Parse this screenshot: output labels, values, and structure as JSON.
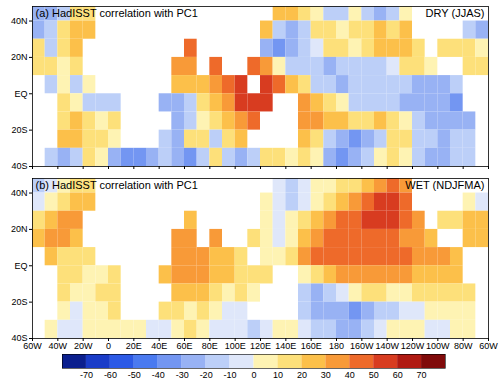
{
  "chart_data": [
    {
      "type": "heatmap",
      "title": "(a) HadISST correlation with PC1",
      "annotation": "DRY (JJAS)",
      "xlim": [
        -60,
        300
      ],
      "ylim": [
        -40,
        48
      ],
      "xticks": [
        {
          "value": -60,
          "label": "60W"
        },
        {
          "value": -40,
          "label": "40W"
        },
        {
          "value": -20,
          "label": "20W"
        },
        0,
        {
          "value": 20,
          "label": "20E"
        },
        {
          "value": 40,
          "label": "40E"
        },
        {
          "value": 60,
          "label": "60E"
        },
        {
          "value": 80,
          "label": "80E"
        },
        {
          "value": 100,
          "label": "100E"
        },
        {
          "value": 120,
          "label": "120E"
        },
        {
          "value": 140,
          "label": "140E"
        },
        {
          "value": 160,
          "label": "160E"
        },
        180,
        {
          "value": 200,
          "label": "160W"
        },
        {
          "value": 220,
          "label": "140W"
        },
        {
          "value": 240,
          "label": "120W"
        },
        {
          "value": 260,
          "label": "100W"
        },
        {
          "value": 280,
          "label": "80W"
        },
        {
          "value": 300,
          "label": "60W"
        }
      ],
      "yticks": [
        {
          "value": -40,
          "label": "40S"
        },
        {
          "value": -20,
          "label": "20S"
        },
        {
          "value": 0,
          "label": "EQ"
        },
        {
          "value": 20,
          "label": "20N"
        },
        {
          "value": 40,
          "label": "40N"
        }
      ],
      "tick_labels": "y",
      "cells": {
        "lon": [
          -60,
          -50,
          -40,
          -30,
          -20,
          -10,
          0,
          10,
          20,
          30,
          40,
          50,
          60,
          70,
          80,
          90,
          100,
          110,
          120,
          130,
          140,
          150,
          160,
          170,
          180,
          190,
          200,
          210,
          220,
          230,
          240,
          250,
          260,
          270,
          280,
          290
        ],
        "lat": [
          40,
          30,
          20,
          10,
          0,
          -10,
          -20,
          -30,
          -40
        ],
        "values": [
          [
            -25,
            -25,
            -15,
            15,
            15,
            null,
            null,
            null,
            null,
            null,
            null,
            null,
            null,
            null,
            null,
            null,
            null,
            null,
            null,
            25,
            25,
            15,
            5,
            -15,
            -15,
            5,
            -15,
            -25,
            -15,
            5,
            null,
            null,
            null,
            null,
            null,
            null
          ],
          [
            -25,
            -15,
            15,
            25,
            25,
            null,
            null,
            null,
            null,
            null,
            null,
            null,
            null,
            null,
            null,
            null,
            null,
            null,
            25,
            -15,
            -25,
            -15,
            15,
            15,
            5,
            15,
            15,
            25,
            15,
            25,
            null,
            null,
            null,
            null,
            -15,
            -25
          ],
          [
            15,
            -15,
            15,
            25,
            null,
            null,
            null,
            null,
            null,
            null,
            null,
            null,
            45,
            null,
            null,
            null,
            null,
            null,
            -25,
            -35,
            -25,
            -15,
            -5,
            15,
            15,
            5,
            15,
            25,
            25,
            25,
            15,
            null,
            15,
            15,
            15,
            5
          ],
          [
            15,
            15,
            5,
            15,
            null,
            null,
            null,
            null,
            null,
            null,
            null,
            35,
            35,
            null,
            45,
            null,
            null,
            45,
            35,
            5,
            -15,
            -15,
            -15,
            -25,
            -15,
            -15,
            -15,
            -15,
            -5,
            15,
            15,
            5,
            null,
            null,
            15,
            15
          ],
          [
            null,
            -15,
            5,
            -15,
            5,
            null,
            null,
            null,
            null,
            null,
            null,
            25,
            25,
            25,
            35,
            45,
            55,
            null,
            55,
            45,
            25,
            15,
            -15,
            -15,
            -25,
            -15,
            -15,
            -15,
            -15,
            -15,
            -25,
            -25,
            -25,
            -15,
            null,
            null
          ],
          [
            null,
            null,
            15,
            5,
            -15,
            -15,
            -15,
            null,
            null,
            null,
            -25,
            -25,
            -15,
            15,
            25,
            35,
            55,
            55,
            55,
            null,
            null,
            35,
            25,
            15,
            5,
            -15,
            -15,
            -15,
            -15,
            -25,
            -25,
            -25,
            -25,
            -35,
            null,
            null
          ],
          [
            null,
            null,
            15,
            25,
            15,
            5,
            15,
            null,
            null,
            null,
            null,
            -25,
            -15,
            5,
            15,
            25,
            35,
            45,
            null,
            null,
            null,
            35,
            35,
            25,
            25,
            15,
            15,
            25,
            15,
            5,
            -15,
            -25,
            -25,
            -25,
            -25,
            null
          ],
          [
            null,
            null,
            25,
            25,
            15,
            15,
            5,
            null,
            null,
            null,
            -15,
            -25,
            15,
            15,
            -15,
            15,
            25,
            null,
            null,
            null,
            null,
            25,
            15,
            -15,
            -25,
            -35,
            -25,
            -15,
            15,
            15,
            -15,
            -15,
            -25,
            -15,
            -15,
            null
          ],
          [
            null,
            -15,
            -25,
            -15,
            15,
            5,
            -25,
            -35,
            -35,
            -25,
            -15,
            -25,
            -35,
            -15,
            15,
            -15,
            -25,
            -15,
            15,
            15,
            5,
            15,
            5,
            -25,
            -35,
            -25,
            -15,
            5,
            15,
            5,
            -15,
            -25,
            -25,
            -15,
            -15,
            null
          ]
        ]
      }
    },
    {
      "type": "heatmap",
      "title": "(b) HadISST correlation with PC1",
      "annotation": "WET (NDJFMA)",
      "xlim": [
        -60,
        300
      ],
      "ylim": [
        -40,
        48
      ],
      "xticks": [
        {
          "value": -60,
          "label": "60W"
        },
        {
          "value": -40,
          "label": "40W"
        },
        {
          "value": -20,
          "label": "20W"
        },
        0,
        {
          "value": 20,
          "label": "20E"
        },
        {
          "value": 40,
          "label": "40E"
        },
        {
          "value": 60,
          "label": "60E"
        },
        {
          "value": 80,
          "label": "80E"
        },
        {
          "value": 100,
          "label": "100E"
        },
        {
          "value": 120,
          "label": "120E"
        },
        {
          "value": 140,
          "label": "140E"
        },
        {
          "value": 160,
          "label": "160E"
        },
        180,
        {
          "value": 200,
          "label": "160W"
        },
        {
          "value": 220,
          "label": "140W"
        },
        {
          "value": 240,
          "label": "120W"
        },
        {
          "value": 260,
          "label": "100W"
        },
        {
          "value": 280,
          "label": "80W"
        },
        {
          "value": 300,
          "label": "60W"
        }
      ],
      "yticks": [
        {
          "value": -40,
          "label": "40S"
        },
        {
          "value": -20,
          "label": "20S"
        },
        {
          "value": 0,
          "label": "EQ"
        },
        {
          "value": 20,
          "label": "20N"
        },
        {
          "value": 40,
          "label": "40N"
        }
      ],
      "cells": {
        "lon": [
          -60,
          -50,
          -40,
          -30,
          -20,
          -10,
          0,
          10,
          20,
          30,
          40,
          50,
          60,
          70,
          80,
          90,
          100,
          110,
          120,
          130,
          140,
          150,
          160,
          170,
          180,
          190,
          200,
          210,
          220,
          230,
          240,
          250,
          260,
          270,
          280,
          290
        ],
        "lat": [
          40,
          30,
          20,
          10,
          0,
          -10,
          -20,
          -30,
          -40
        ],
        "values": [
          [
            -15,
            -5,
            5,
            15,
            15,
            null,
            null,
            null,
            null,
            null,
            null,
            null,
            null,
            null,
            null,
            null,
            null,
            null,
            null,
            -5,
            -15,
            -5,
            5,
            5,
            15,
            15,
            25,
            35,
            45,
            35,
            null,
            null,
            null,
            null,
            null,
            null
          ],
          [
            -5,
            5,
            15,
            25,
            25,
            null,
            null,
            null,
            null,
            null,
            null,
            null,
            null,
            null,
            null,
            null,
            null,
            null,
            5,
            -5,
            -15,
            -5,
            5,
            15,
            25,
            35,
            45,
            55,
            55,
            45,
            null,
            null,
            null,
            null,
            5,
            -5
          ],
          [
            15,
            25,
            35,
            35,
            null,
            null,
            null,
            null,
            null,
            null,
            null,
            null,
            25,
            null,
            null,
            null,
            null,
            null,
            5,
            -5,
            5,
            15,
            25,
            35,
            45,
            45,
            55,
            55,
            55,
            45,
            35,
            null,
            15,
            15,
            25,
            25
          ],
          [
            25,
            35,
            35,
            25,
            null,
            null,
            null,
            null,
            null,
            null,
            null,
            35,
            35,
            null,
            35,
            null,
            null,
            15,
            5,
            -5,
            5,
            25,
            35,
            45,
            45,
            45,
            45,
            45,
            45,
            35,
            35,
            25,
            null,
            null,
            25,
            25
          ],
          [
            null,
            25,
            15,
            15,
            15,
            null,
            null,
            null,
            null,
            null,
            null,
            35,
            35,
            35,
            25,
            25,
            15,
            null,
            5,
            5,
            15,
            35,
            45,
            45,
            45,
            45,
            45,
            45,
            45,
            45,
            35,
            35,
            35,
            25,
            null,
            null
          ],
          [
            null,
            null,
            15,
            15,
            5,
            5,
            15,
            null,
            null,
            null,
            25,
            35,
            35,
            35,
            25,
            25,
            15,
            15,
            15,
            null,
            null,
            5,
            15,
            25,
            35,
            35,
            35,
            35,
            35,
            35,
            25,
            25,
            25,
            25,
            null,
            null
          ],
          [
            null,
            null,
            15,
            5,
            5,
            15,
            15,
            null,
            null,
            null,
            null,
            25,
            25,
            25,
            15,
            5,
            15,
            5,
            null,
            null,
            null,
            -15,
            -25,
            -15,
            -5,
            5,
            15,
            15,
            5,
            5,
            15,
            15,
            15,
            15,
            15,
            null
          ],
          [
            null,
            null,
            5,
            -5,
            5,
            5,
            15,
            null,
            null,
            null,
            15,
            15,
            5,
            15,
            5,
            -5,
            -5,
            null,
            null,
            null,
            null,
            -15,
            -25,
            -25,
            -25,
            -35,
            -25,
            -15,
            -15,
            -5,
            -5,
            5,
            5,
            5,
            5,
            null
          ],
          [
            null,
            5,
            -5,
            -5,
            5,
            5,
            5,
            5,
            5,
            -5,
            -5,
            5,
            15,
            5,
            -5,
            -5,
            -5,
            -15,
            -5,
            5,
            5,
            -5,
            -15,
            -15,
            -25,
            -25,
            -15,
            -5,
            5,
            5,
            5,
            -5,
            -5,
            5,
            5,
            null
          ]
        ]
      }
    }
  ],
  "colorbar": {
    "range": [
      -80,
      80
    ],
    "ticks": [
      -70,
      -60,
      -50,
      -40,
      -30,
      -20,
      -10,
      0,
      10,
      20,
      30,
      40,
      50,
      60,
      70
    ],
    "colors": [
      "#0b1f8e",
      "#1a3cc8",
      "#2c5ae6",
      "#4a7af0",
      "#7396f2",
      "#98b2f4",
      "#bccff8",
      "#dfe7fa",
      "#fef3b3",
      "#fde07a",
      "#fcc04a",
      "#f89a38",
      "#ee6a2a",
      "#d83c20",
      "#b01a12",
      "#800a0a"
    ]
  }
}
